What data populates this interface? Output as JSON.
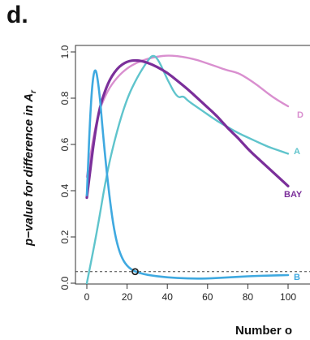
{
  "panel_label": "d.",
  "chart_data": {
    "type": "line",
    "ylabel_main": "p−value for difference in A",
    "ylabel_sub": "r",
    "xlabel": "Number o",
    "xlim": [
      0,
      100
    ],
    "ylim": [
      0,
      1.0
    ],
    "x_ticks": [
      0,
      20,
      40,
      60,
      80,
      100
    ],
    "y_ticks": [
      0.0,
      0.2,
      0.4,
      0.6,
      0.8,
      1.0
    ],
    "y_tick_labels": [
      "0.0",
      "0.2",
      "0.4",
      "0.6",
      "0.8",
      "1.0"
    ],
    "threshold": 0.05,
    "marker": {
      "x": 24,
      "y": 0.05
    },
    "series": [
      {
        "name": "D",
        "color": "#d98fcf",
        "x": [
          0,
          5,
          10,
          15,
          20,
          25,
          30,
          35,
          40,
          45,
          50,
          55,
          60,
          65,
          70,
          75,
          80,
          85,
          90,
          95,
          100
        ],
        "y": [
          0.46,
          0.72,
          0.83,
          0.89,
          0.93,
          0.955,
          0.97,
          0.98,
          0.985,
          0.982,
          0.975,
          0.965,
          0.95,
          0.935,
          0.92,
          0.91,
          0.885,
          0.855,
          0.82,
          0.79,
          0.765
        ]
      },
      {
        "name": "A",
        "color": "#5fc4cc",
        "x": [
          0,
          5,
          10,
          15,
          20,
          25,
          30,
          33,
          36,
          40,
          45,
          48,
          50,
          55,
          60,
          65,
          70,
          75,
          80,
          85,
          90,
          95,
          100
        ],
        "y": [
          0.0,
          0.22,
          0.48,
          0.66,
          0.8,
          0.89,
          0.96,
          0.99,
          0.96,
          0.88,
          0.8,
          0.81,
          0.79,
          0.76,
          0.73,
          0.7,
          0.675,
          0.65,
          0.63,
          0.61,
          0.59,
          0.575,
          0.56
        ]
      },
      {
        "name": "BAY",
        "color": "#7b2f9a",
        "x": [
          0,
          5,
          10,
          15,
          20,
          25,
          30,
          35,
          40,
          45,
          50,
          55,
          60,
          65,
          70,
          75,
          80,
          85,
          90,
          95,
          100
        ],
        "y": [
          0.37,
          0.72,
          0.86,
          0.93,
          0.96,
          0.965,
          0.955,
          0.935,
          0.91,
          0.875,
          0.84,
          0.8,
          0.76,
          0.72,
          0.67,
          0.63,
          0.58,
          0.54,
          0.5,
          0.46,
          0.42
        ]
      },
      {
        "name": "B",
        "color": "#3fa9e0",
        "x": [
          0,
          2,
          4,
          6,
          8,
          10,
          12,
          14,
          16,
          18,
          20,
          22,
          24,
          30,
          40,
          50,
          60,
          70,
          80,
          90,
          100
        ],
        "y": [
          0.38,
          0.8,
          0.95,
          0.85,
          0.65,
          0.47,
          0.32,
          0.21,
          0.14,
          0.1,
          0.075,
          0.06,
          0.05,
          0.035,
          0.025,
          0.02,
          0.02,
          0.025,
          0.03,
          0.033,
          0.035
        ]
      }
    ]
  }
}
